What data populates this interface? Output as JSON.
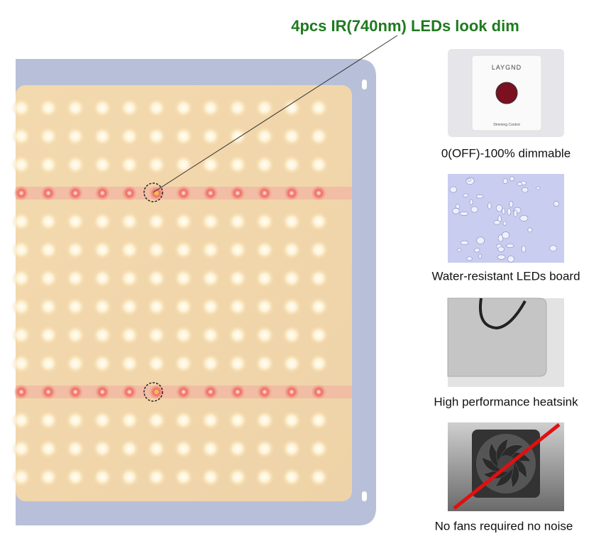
{
  "headline": "4pcs IR(740nm) LEDs look dim",
  "dimmer": {
    "brand": "LAYGND",
    "label": "Dimming Control"
  },
  "features": [
    {
      "caption": "0(OFF)-100% dimmable"
    },
    {
      "caption": "Water-resistant LEDs board"
    },
    {
      "caption": "High performance heatsink"
    },
    {
      "caption": "No fans required no noise"
    }
  ]
}
